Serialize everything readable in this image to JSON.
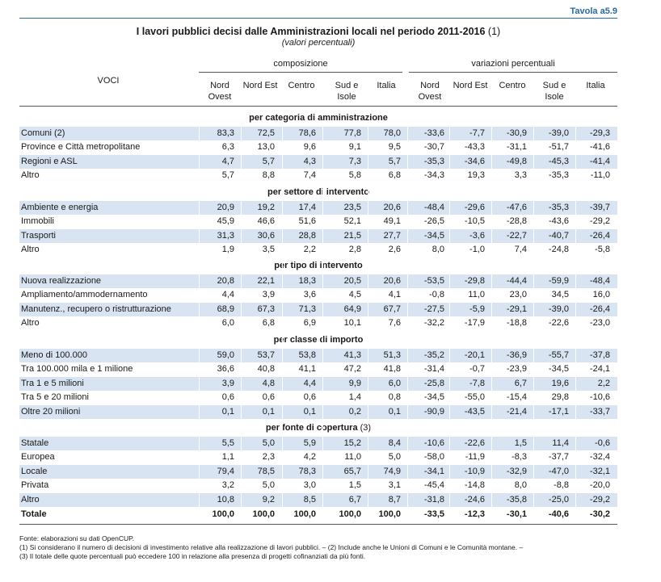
{
  "header": {
    "tavola": "Tavola a5.9",
    "title": "I lavori pubblici decisi dalle Amministrazioni locali nel periodo 2011-2016",
    "title_note": "(1)",
    "subtitle": "(valori percentuali)"
  },
  "columns": {
    "voci": "VOCI",
    "group_composizione": "composizione",
    "group_variazioni": "variazioni percentuali",
    "names": [
      [
        "Nord",
        "Ovest"
      ],
      [
        "Nord Est",
        ""
      ],
      [
        "Centro",
        ""
      ],
      [
        "Sud e",
        "Isole"
      ],
      [
        "Italia",
        ""
      ],
      [
        "Nord",
        "Ovest"
      ],
      [
        "Nord Est",
        ""
      ],
      [
        "Centro",
        ""
      ],
      [
        "Sud e",
        "Isole"
      ],
      [
        "Italia",
        ""
      ]
    ]
  },
  "sections": [
    {
      "title": "per categoria di amministrazione",
      "note": "",
      "rows": [
        {
          "label": "Comuni (2)",
          "values": [
            "83,3",
            "72,5",
            "78,6",
            "77,8",
            "78,0",
            "-33,6",
            "-7,7",
            "-30,9",
            "-39,0",
            "-29,3"
          ]
        },
        {
          "label": "Province e Città metropolitane",
          "values": [
            "6,3",
            "13,0",
            "9,6",
            "9,1",
            "9,5",
            "-30,7",
            "-43,3",
            "-31,1",
            "-51,7",
            "-41,6"
          ]
        },
        {
          "label": "Regioni e ASL",
          "values": [
            "4,7",
            "5,7",
            "4,3",
            "7,3",
            "5,7",
            "-35,3",
            "-34,6",
            "-49,8",
            "-45,3",
            "-41,4"
          ]
        },
        {
          "label": "Altro",
          "values": [
            "5,7",
            "8,8",
            "7,4",
            "5,8",
            "6,8",
            "-34,3",
            "19,3",
            "3,3",
            "-35,3",
            "-11,0"
          ]
        }
      ]
    },
    {
      "title": "per settore di intervento",
      "note": "",
      "rows": [
        {
          "label": "Ambiente e energia",
          "values": [
            "20,9",
            "19,2",
            "17,4",
            "23,5",
            "20,6",
            "-48,4",
            "-29,6",
            "-47,6",
            "-35,3",
            "-39,7"
          ]
        },
        {
          "label": "Immobili",
          "values": [
            "45,9",
            "46,6",
            "51,6",
            "52,1",
            "49,1",
            "-26,5",
            "-10,5",
            "-28,8",
            "-43,6",
            "-29,2"
          ]
        },
        {
          "label": "Trasporti",
          "values": [
            "31,3",
            "30,6",
            "28,8",
            "21,5",
            "27,7",
            "-34,5",
            "-3,6",
            "-22,7",
            "-40,7",
            "-26,4"
          ]
        },
        {
          "label": "Altro",
          "values": [
            "1,9",
            "3,5",
            "2,2",
            "2,8",
            "2,6",
            "8,0",
            "-1,0",
            "7,4",
            "-24,8",
            "-5,8"
          ]
        }
      ]
    },
    {
      "title": "per tipo di intervento",
      "note": "",
      "rows": [
        {
          "label": "Nuova realizzazione",
          "values": [
            "20,8",
            "22,1",
            "18,3",
            "20,5",
            "20,6",
            "-53,5",
            "-29,8",
            "-44,4",
            "-59,9",
            "-48,4"
          ]
        },
        {
          "label": "Ampliamento/ammodernamento",
          "values": [
            "4,4",
            "3,9",
            "3,6",
            "4,5",
            "4,1",
            "-0,8",
            "11,0",
            "23,0",
            "34,5",
            "16,0"
          ]
        },
        {
          "label": "Manutenz., recupero o ristrutturazione",
          "values": [
            "68,9",
            "67,3",
            "71,3",
            "64,9",
            "67,7",
            "-27,5",
            "-5,9",
            "-29,1",
            "-39,0",
            "-26,4"
          ]
        },
        {
          "label": "Altro",
          "values": [
            "6,0",
            "6,8",
            "6,9",
            "10,1",
            "7,6",
            "-32,2",
            "-17,9",
            "-18,8",
            "-22,6",
            "-23,0"
          ]
        }
      ]
    },
    {
      "title": "per classe di importo",
      "note": "",
      "rows": [
        {
          "label": "Meno di 100.000",
          "values": [
            "59,0",
            "53,7",
            "53,8",
            "41,3",
            "51,3",
            "-35,2",
            "-20,1",
            "-36,9",
            "-55,7",
            "-37,8"
          ]
        },
        {
          "label": "Tra 100.000 mila e 1 milione",
          "values": [
            "36,6",
            "40,8",
            "41,1",
            "47,2",
            "41,8",
            "-31,4",
            "-0,7",
            "-23,9",
            "-34,5",
            "-24,1"
          ]
        },
        {
          "label": "Tra 1 e 5 milioni",
          "values": [
            "3,9",
            "4,8",
            "4,4",
            "9,9",
            "6,0",
            "-25,8",
            "-7,8",
            "6,7",
            "19,6",
            "2,2"
          ]
        },
        {
          "label": "Tra 5 e 20 milioni",
          "values": [
            "0,6",
            "0,6",
            "0,6",
            "1,4",
            "0,8",
            "-34,5",
            "-55,0",
            "-15,4",
            "29,8",
            "-10,6"
          ]
        },
        {
          "label": "Oltre 20 milioni",
          "values": [
            "0,1",
            "0,1",
            "0,1",
            "0,2",
            "0,1",
            "-90,9",
            "-43,5",
            "-21,4",
            "-17,1",
            "-33,7"
          ]
        }
      ]
    },
    {
      "title": "per fonte di copertura",
      "note": "(3)",
      "rows": [
        {
          "label": "Statale",
          "values": [
            "5,5",
            "5,0",
            "5,9",
            "15,2",
            "8,4",
            "-10,6",
            "-22,6",
            "1,5",
            "11,4",
            "-0,6"
          ]
        },
        {
          "label": "Europea",
          "values": [
            "1,1",
            "2,3",
            "4,2",
            "11,0",
            "5,0",
            "-58,0",
            "-11,9",
            "-8,3",
            "-37,7",
            "-32,4"
          ]
        },
        {
          "label": "Locale",
          "values": [
            "79,4",
            "78,5",
            "78,3",
            "65,7",
            "74,9",
            "-34,1",
            "-10,9",
            "-32,9",
            "-47,0",
            "-32,1"
          ]
        },
        {
          "label": "Privata",
          "values": [
            "3,2",
            "5,0",
            "3,0",
            "1,5",
            "3,1",
            "-45,4",
            "-14,8",
            "8,0",
            "-8,8",
            "-20,0"
          ]
        },
        {
          "label": "Altro",
          "values": [
            "10,8",
            "9,2",
            "8,5",
            "6,7",
            "8,7",
            "-31,8",
            "-24,6",
            "-35,8",
            "-25,0",
            "-29,2"
          ]
        }
      ]
    }
  ],
  "total": {
    "label": "Totale",
    "values": [
      "100,0",
      "100,0",
      "100,0",
      "100,0",
      "100,0",
      "-33,5",
      "-12,3",
      "-30,1",
      "-40,6",
      "-30,2"
    ]
  },
  "footnotes": [
    "Fonte: elaborazioni su dati OpenCUP.",
    "(1) Si considerano il numero di decisioni di investimento relative alla realizzazione di lavori pubblici. – (2) Include anche le Unioni di Comuni e le Comunità montane. –",
    "(3) Il totale delle quote percentuali può eccedere 100 in relazione alla presenza di progetti cofinanziati da più fonti."
  ]
}
